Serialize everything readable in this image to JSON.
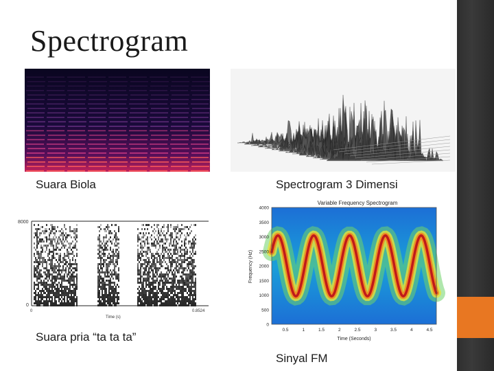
{
  "slide": {
    "title": "Spectrogram",
    "captions": {
      "violin": "Suara Biola",
      "spectrogram_3d": "Spectrogram 3 Dimensi",
      "male_voice": "Suara pria “ta ta ta”",
      "fm_signal": "Sinyal FM"
    }
  },
  "fm_plot": {
    "title": "Variable Frequency Spectrogram",
    "ylabel": "Frequency (Hz)",
    "xlabel": "Time (Seconds)",
    "y_ticks": [
      "4000",
      "3500",
      "3000",
      "2500",
      "2000",
      "1500",
      "1000",
      "500",
      "0"
    ],
    "x_ticks": [
      "0.5",
      "1",
      "1.5",
      "2",
      "2.5",
      "3",
      "3.5",
      "4",
      "4.5"
    ]
  },
  "voice_plot": {
    "y_top": "8000",
    "y_bottom": "0",
    "x_left": "0",
    "x_right": "0.8524",
    "xlabel": "Time (s)"
  },
  "colors": {
    "accent": "#e87722",
    "sidebar": "#333333"
  }
}
